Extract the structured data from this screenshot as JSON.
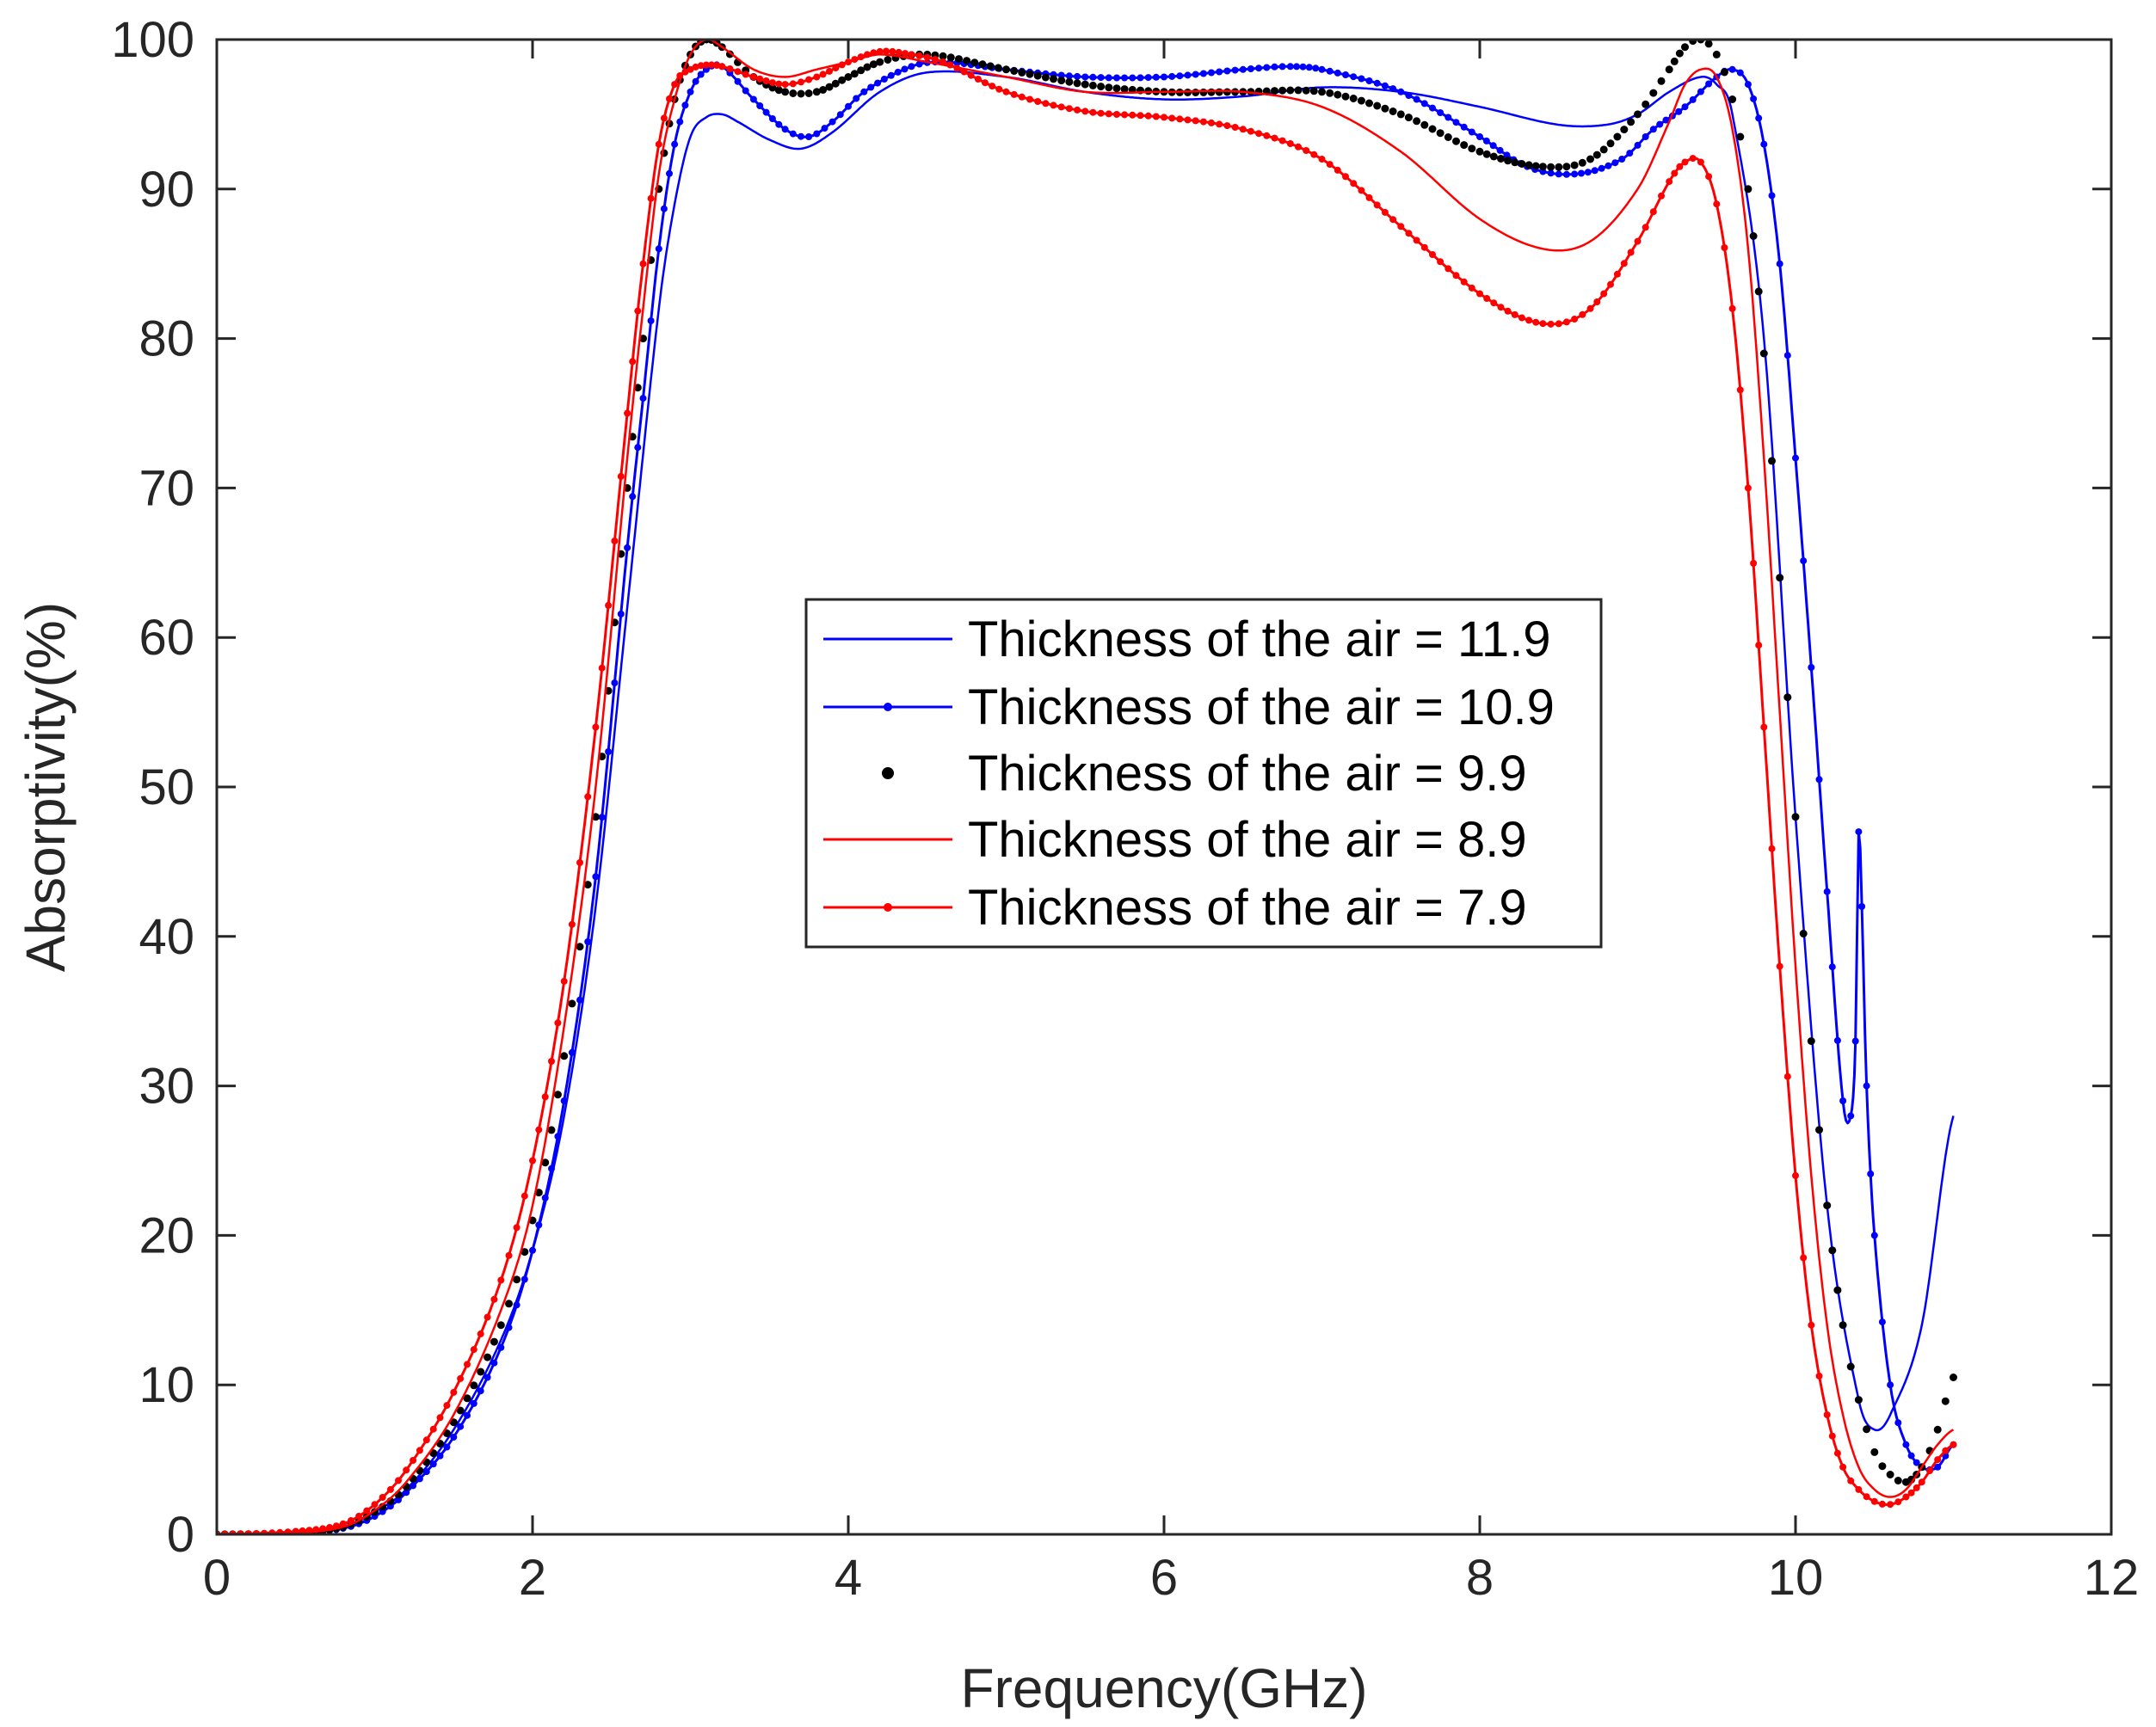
{
  "chart_data": {
    "type": "line",
    "title": "",
    "xlabel": "Frequency(GHz)",
    "ylabel": "Absorptivity(%)",
    "xlim": [
      0,
      12
    ],
    "ylim": [
      0,
      100
    ],
    "xticks": [
      0,
      2,
      4,
      6,
      8,
      10,
      12
    ],
    "yticks": [
      0,
      10,
      20,
      30,
      40,
      50,
      60,
      70,
      80,
      90,
      100
    ],
    "grid": false,
    "legend_position": "center",
    "series": [
      {
        "name": "Thickness of the air = 11.9",
        "color": "#0000ff",
        "style": "thin-line",
        "x": [
          0,
          0.5,
          0.8,
          1.0,
          1.2,
          1.5,
          1.8,
          2.0,
          2.2,
          2.4,
          2.6,
          2.8,
          2.9,
          3.0,
          3.1,
          3.2,
          3.3,
          3.5,
          3.7,
          3.9,
          4.2,
          4.5,
          5.0,
          5.5,
          6.0,
          6.5,
          7.0,
          7.5,
          8.0,
          8.5,
          8.8,
          9.0,
          9.2,
          9.4,
          9.5,
          9.6,
          9.8,
          10.0,
          10.2,
          10.4,
          10.5,
          10.6,
          10.8,
          11.0
        ],
        "y": [
          0,
          0.1,
          0.5,
          1.5,
          3,
          7,
          13,
          19,
          28,
          42,
          62,
          82,
          89,
          93.5,
          94.8,
          95,
          94.5,
          93.3,
          92.7,
          93.8,
          96.5,
          97.8,
          97.5,
          96.5,
          96,
          96.2,
          96.8,
          96.5,
          95.5,
          94.3,
          94.3,
          95,
          96.5,
          97.5,
          97,
          95,
          80,
          48,
          22,
          9,
          7,
          8,
          14,
          28
        ]
      },
      {
        "name": "Thickness of the air = 10.9",
        "color": "#0000ff",
        "style": "line-dots",
        "x": [
          0,
          0.5,
          0.8,
          1.0,
          1.2,
          1.5,
          1.8,
          2.0,
          2.2,
          2.4,
          2.6,
          2.7,
          2.8,
          2.9,
          3.0,
          3.1,
          3.2,
          3.4,
          3.6,
          3.75,
          3.9,
          4.1,
          4.4,
          4.6,
          5.0,
          5.5,
          6.0,
          6.5,
          6.8,
          7.0,
          7.5,
          8.0,
          8.3,
          8.6,
          8.9,
          9.1,
          9.3,
          9.5,
          9.6,
          9.7,
          9.8,
          9.9,
          10.0,
          10.1,
          10.2,
          10.3,
          10.35,
          10.38,
          10.4,
          10.42,
          10.45,
          10.5,
          10.6,
          10.7,
          10.8,
          10.9,
          11.0
        ],
        "y": [
          0,
          0.1,
          0.4,
          1.2,
          2.8,
          6.5,
          12.5,
          19,
          29,
          44,
          66,
          76,
          86,
          93,
          96.5,
          98,
          98.2,
          96,
          94,
          93.5,
          94.5,
          96.5,
          98.2,
          98.5,
          98,
          97.5,
          97.5,
          98,
          98.2,
          98,
          96.5,
          93.5,
          91.5,
          91,
          92,
          94,
          95.5,
          97.5,
          98,
          97,
          93,
          85,
          72,
          58,
          43,
          29,
          28,
          33,
          47,
          42,
          30,
          20,
          10,
          6,
          4.5,
          4.5,
          6
        ]
      },
      {
        "name": "Thickness of the air = 9.9",
        "color": "#000000",
        "style": "dots",
        "x": [
          0,
          0.5,
          0.8,
          1.0,
          1.2,
          1.5,
          1.8,
          2.0,
          2.2,
          2.4,
          2.6,
          2.7,
          2.8,
          2.9,
          3.0,
          3.1,
          3.2,
          3.4,
          3.6,
          3.8,
          4.0,
          4.2,
          4.5,
          5.0,
          5.5,
          6.0,
          6.5,
          7.0,
          7.5,
          8.0,
          8.4,
          8.7,
          9.0,
          9.2,
          9.3,
          9.4,
          9.5,
          9.6,
          9.7,
          9.8,
          9.9,
          10.0,
          10.1,
          10.2,
          10.3,
          10.4,
          10.5,
          10.6,
          10.7,
          10.8,
          10.9,
          11.0
        ],
        "y": [
          0,
          0.1,
          0.5,
          1.5,
          3.2,
          7.5,
          14,
          21,
          32,
          48,
          70,
          80,
          90,
          96,
          99,
          100,
          99.5,
          97.5,
          96.5,
          96.5,
          97.5,
          98.5,
          99,
          98,
          97,
          96.5,
          96.5,
          96.5,
          95,
          92.5,
          91.5,
          92,
          95,
          98,
          99.5,
          100,
          99,
          96,
          90,
          79,
          64,
          48,
          33,
          22,
          14,
          9,
          5.5,
          4,
          3.5,
          4.5,
          7,
          10.5
        ]
      },
      {
        "name": "Thickness of the air = 8.9",
        "color": "#ff0000",
        "style": "thin-line",
        "x": [
          0,
          0.5,
          0.8,
          1.0,
          1.2,
          1.5,
          1.8,
          2.0,
          2.2,
          2.4,
          2.6,
          2.7,
          2.8,
          2.9,
          3.0,
          3.1,
          3.2,
          3.4,
          3.6,
          3.8,
          4.0,
          4.2,
          4.5,
          5.0,
          5.5,
          6.0,
          6.5,
          7.0,
          7.5,
          8.0,
          8.4,
          8.7,
          9.0,
          9.2,
          9.3,
          9.4,
          9.5,
          9.6,
          9.7,
          9.8,
          9.9,
          10.0,
          10.1,
          10.2,
          10.3,
          10.4,
          10.5,
          10.6,
          10.7,
          10.8,
          10.9,
          11.0
        ],
        "y": [
          0,
          0.1,
          0.5,
          1.6,
          3.5,
          8,
          15,
          22,
          34,
          50,
          72,
          82,
          91,
          96,
          99,
          100,
          99.5,
          98,
          97.5,
          98,
          98.5,
          99,
          98.5,
          97.5,
          96.5,
          96.5,
          96.5,
          95.5,
          92.5,
          88,
          86,
          86.5,
          90,
          94.5,
          97,
          98,
          97.5,
          94,
          86,
          72,
          55,
          38,
          24,
          14,
          8,
          4.5,
          3,
          2.5,
          3,
          4.5,
          6,
          7
        ]
      },
      {
        "name": "Thickness of the air = 7.9",
        "color": "#ff0000",
        "style": "line-dots",
        "x": [
          0,
          0.5,
          0.8,
          1.0,
          1.2,
          1.5,
          1.8,
          2.0,
          2.2,
          2.4,
          2.6,
          2.7,
          2.8,
          2.9,
          3.0,
          3.1,
          3.2,
          3.4,
          3.6,
          3.8,
          4.0,
          4.2,
          4.4,
          4.6,
          5.0,
          5.5,
          6.0,
          6.5,
          7.0,
          7.5,
          8.0,
          8.4,
          8.7,
          9.0,
          9.2,
          9.3,
          9.4,
          9.5,
          9.6,
          9.7,
          9.8,
          9.9,
          10.0,
          10.1,
          10.2,
          10.3,
          10.4,
          10.5,
          10.6,
          10.7,
          10.8,
          10.9,
          11.0
        ],
        "y": [
          0,
          0.2,
          0.7,
          2,
          4.3,
          9.5,
          17,
          25,
          37,
          54,
          75,
          85,
          93,
          97,
          98,
          98.3,
          98.2,
          97.5,
          97,
          97.5,
          98.5,
          99.2,
          99,
          98.5,
          96.5,
          95.2,
          94.8,
          94,
          92,
          87.5,
          83,
          81,
          82,
          86.5,
          90.5,
          91.8,
          91.8,
          89,
          82,
          70,
          54,
          38,
          24,
          14,
          8,
          4.5,
          3,
          2.2,
          2,
          2.5,
          3.5,
          5,
          6
        ]
      }
    ]
  }
}
